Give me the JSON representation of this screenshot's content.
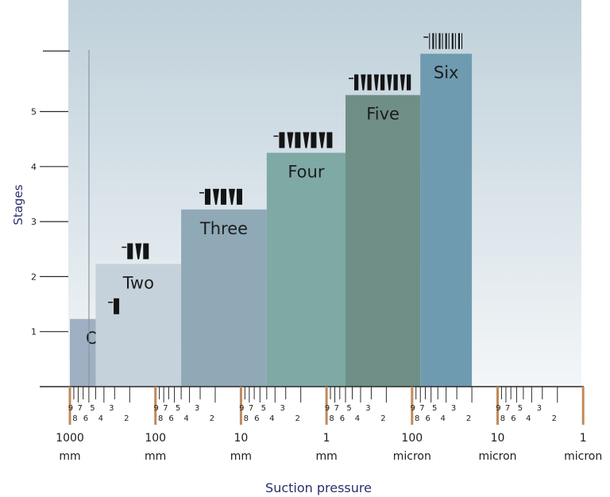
{
  "colors": {
    "panel_top": "#bfd0da",
    "panel_bottom": "#f3f6f8",
    "axis": "#2a2a2a",
    "major_tick": "#c08a5a",
    "axis_title": "#2b2f6e",
    "label": "#1d1d1d",
    "pictogram": "#141414"
  },
  "chart_data": {
    "type": "bar",
    "title": "",
    "xlabel": "Suction pressure",
    "ylabel": "Stages",
    "ylim": [
      0,
      6.1
    ],
    "y_ticks": [
      1,
      2,
      3,
      4,
      5
    ],
    "x_scale": "log",
    "x_range": [
      "1000 mm",
      "1 micron"
    ],
    "x_major_labels": [
      {
        "value": "1000",
        "unit": "mm"
      },
      {
        "value": "100",
        "unit": "mm"
      },
      {
        "value": "10",
        "unit": "mm"
      },
      {
        "value": "1",
        "unit": "mm"
      },
      {
        "value": "100",
        "unit": "micron"
      },
      {
        "value": "10",
        "unit": "micron"
      },
      {
        "value": "1",
        "unit": "micron"
      }
    ],
    "x_minor_labels_top": [
      "9",
      "7",
      "5",
      "3"
    ],
    "x_minor_labels_bottom": [
      "8",
      "6",
      "4",
      "2"
    ],
    "bars": [
      {
        "label": "One",
        "stages": 1,
        "value": 1.23,
        "x_start": "1000 mm",
        "x_end": "80 mm",
        "color": "#9fb0c2",
        "ejectors": 1
      },
      {
        "label": "Two",
        "stages": 2,
        "value": 2.23,
        "x_start": "500 mm",
        "x_end": "50 mm",
        "color": "#c5d2db",
        "ejectors": 3
      },
      {
        "label": "Three",
        "stages": 3,
        "value": 3.22,
        "x_start": "50 mm",
        "x_end": "5 mm",
        "color": "#8fa9b6",
        "ejectors": 5
      },
      {
        "label": "Four",
        "stages": 4,
        "value": 4.25,
        "x_start": "5 mm",
        "x_end": "0.6 mm",
        "color": "#7ea9a5",
        "ejectors": 7
      },
      {
        "label": "Five",
        "stages": 5,
        "value": 5.3,
        "x_start": "0.6 mm",
        "x_end": "80 micron",
        "color": "#6f8f86",
        "ejectors": 9
      },
      {
        "label": "Six",
        "stages": 6,
        "value": 6.05,
        "x_start": "80 micron",
        "x_end": "20 micron",
        "color": "#6f9bb1",
        "ejectors": 11
      }
    ]
  }
}
